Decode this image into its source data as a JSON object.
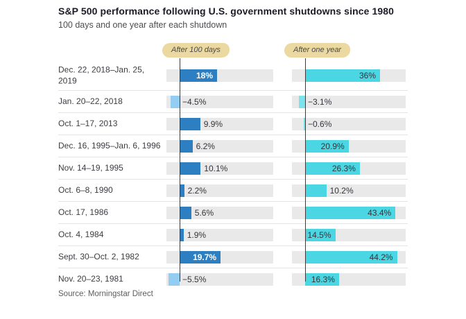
{
  "header": {
    "title": "S&P 500 performance following U.S. government shutdowns since 1980",
    "subtitle": "100 days and one year after each shutdown"
  },
  "columns": [
    {
      "label": "After 100 days"
    },
    {
      "label": "After one year"
    }
  ],
  "footer": {
    "source": "Source: Morningstar Direct"
  },
  "colors": {
    "bar_100days_positive": "#2e7fc2",
    "bar_100days_negative": "#93cdf1",
    "bar_oneyear_positive": "#4bd6e3",
    "bar_oneyear_negative": "#7ce2ec",
    "track": "#e9e9e9",
    "header_highlight": "#ecd9a1",
    "baseline": "#3b3b3b"
  },
  "chart_data": {
    "type": "bar",
    "orientation": "horizontal",
    "title": "S&P 500 performance following U.S. government shutdowns since 1980",
    "subtitle": "100 days and one year after each shutdown",
    "unit": "%",
    "baseline": 0,
    "axis_range_percent": [
      -6.5,
      45
    ],
    "grid": false,
    "categories": [
      "Dec. 22, 2018–Jan. 25, 2019",
      "Jan. 20–22, 2018",
      "Oct. 1–17, 2013",
      "Dec. 16, 1995–Jan. 6, 1996",
      "Nov. 14–19, 1995",
      "Oct. 6–8, 1990",
      "Oct. 17, 1986",
      "Oct. 4, 1984",
      "Sept. 30–Oct. 2, 1982",
      "Nov. 20–23, 1981"
    ],
    "series": [
      {
        "name": "After 100 days",
        "values": [
          18,
          -4.5,
          9.9,
          6.2,
          10.1,
          2.2,
          5.6,
          1.9,
          19.7,
          -5.5
        ],
        "labels": [
          "18%",
          "−4.5%",
          "9.9%",
          "6.2%",
          "10.1%",
          "2.2%",
          "5.6%",
          "1.9%",
          "19.7%",
          "−5.5%"
        ]
      },
      {
        "name": "After one year",
        "values": [
          36,
          -3.1,
          -0.6,
          20.9,
          26.3,
          10.2,
          43.4,
          14.5,
          44.2,
          16.3
        ],
        "labels": [
          "36%",
          "−3.1%",
          "−0.6%",
          "20.9%",
          "26.3%",
          "10.2%",
          "43.4%",
          "14.5%",
          "44.2%",
          "16.3%"
        ]
      }
    ]
  }
}
